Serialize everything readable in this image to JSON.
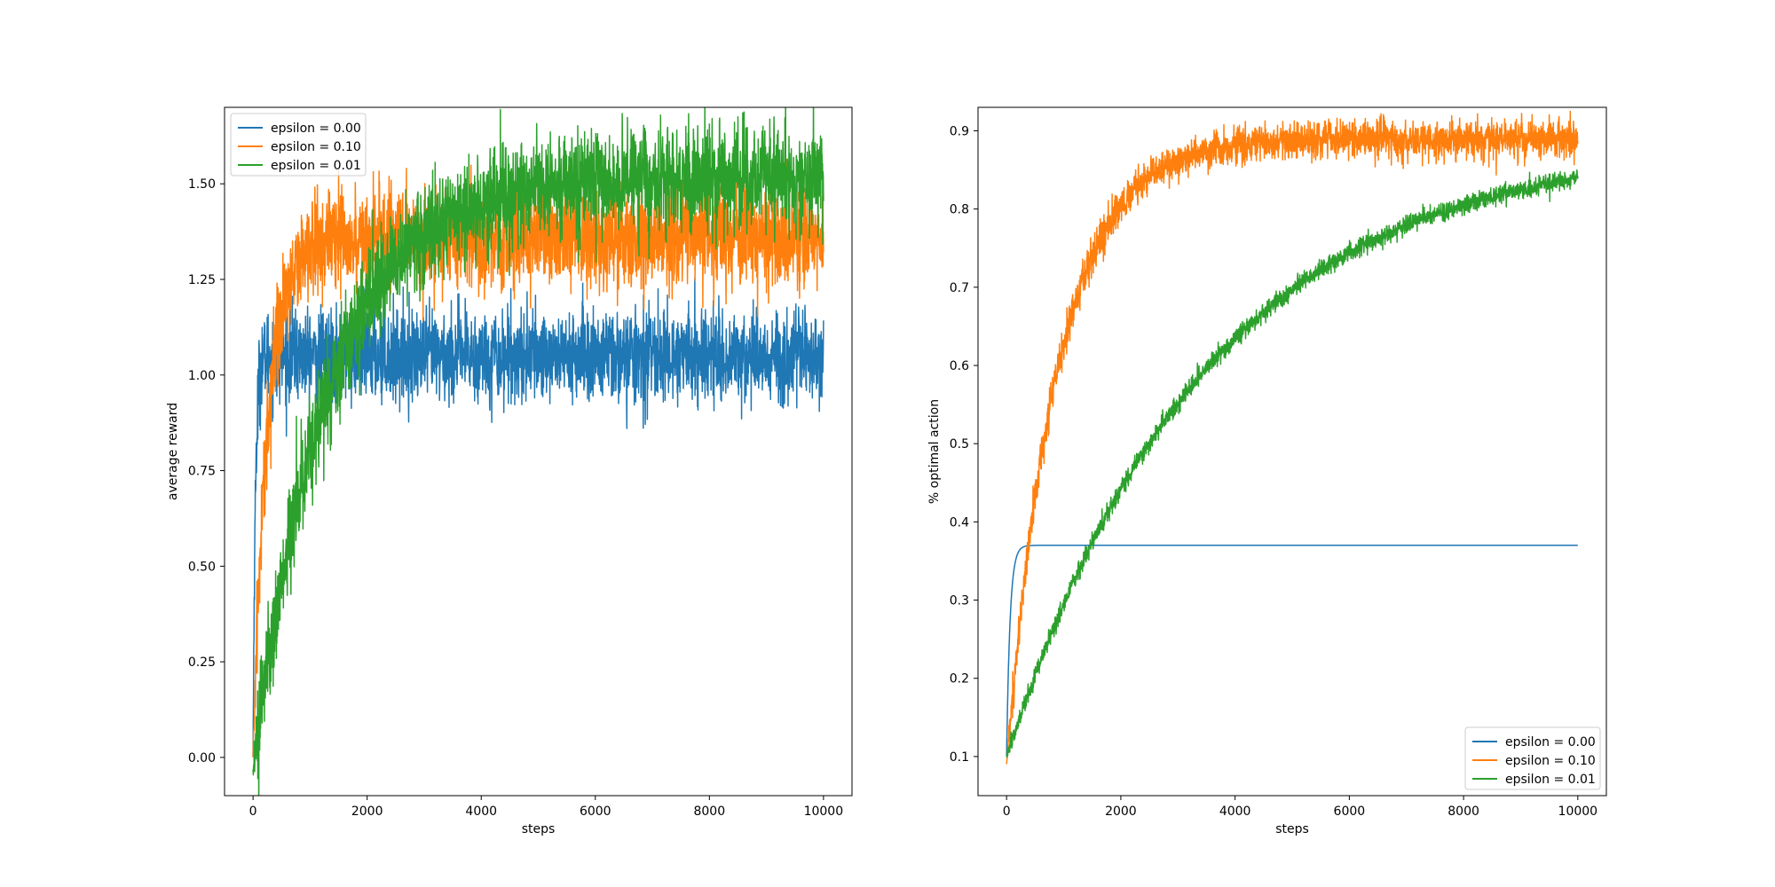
{
  "chart_data": [
    {
      "type": "line",
      "title": "",
      "xlabel": "steps",
      "ylabel": "average reward",
      "xlim": [
        -500,
        10500
      ],
      "ylim": [
        -0.1,
        1.7
      ],
      "xticks": [
        0,
        2000,
        4000,
        6000,
        8000,
        10000
      ],
      "yticks": [
        0.0,
        0.25,
        0.5,
        0.75,
        1.0,
        1.25,
        1.5
      ],
      "ytick_labels": [
        "0.00",
        "0.25",
        "0.50",
        "0.75",
        "1.00",
        "1.25",
        "1.50"
      ],
      "legend_position": "upper-left",
      "grid": false,
      "series": [
        {
          "name": "epsilon = 0.00",
          "color": "#1f77b4",
          "start": 0.0,
          "plateau": 1.05,
          "tau": 40,
          "noise": 0.06
        },
        {
          "name": "epsilon = 0.10",
          "color": "#ff7f0e",
          "start": 0.0,
          "plateau": 1.36,
          "tau": 250,
          "noise": 0.065
        },
        {
          "name": "epsilon = 0.01",
          "color": "#2ca02c",
          "start": -0.03,
          "plateau": 1.52,
          "tau": 1300,
          "noise": 0.065
        }
      ]
    },
    {
      "type": "line",
      "title": "",
      "xlabel": "steps",
      "ylabel": "% optimal action",
      "xlim": [
        -500,
        10500
      ],
      "ylim": [
        0.05,
        0.93
      ],
      "xticks": [
        0,
        2000,
        4000,
        6000,
        8000,
        10000
      ],
      "yticks": [
        0.1,
        0.2,
        0.3,
        0.4,
        0.5,
        0.6,
        0.7,
        0.8,
        0.9
      ],
      "ytick_labels": [
        "0.1",
        "0.2",
        "0.3",
        "0.4",
        "0.5",
        "0.6",
        "0.7",
        "0.8",
        "0.9"
      ],
      "legend_position": "lower-right",
      "grid": false,
      "series": [
        {
          "name": "epsilon = 0.00",
          "color": "#1f77b4",
          "start": 0.1,
          "plateau": 0.37,
          "tau": 60,
          "noise": 0.0
        },
        {
          "name": "epsilon = 0.10",
          "color": "#ff7f0e",
          "start": 0.09,
          "plateau": 0.89,
          "tau": 900,
          "noise": 0.012
        },
        {
          "name": "epsilon = 0.01",
          "color": "#2ca02c",
          "start": 0.1,
          "plateau": 0.885,
          "tau": 3500,
          "noise": 0.006
        }
      ]
    }
  ]
}
